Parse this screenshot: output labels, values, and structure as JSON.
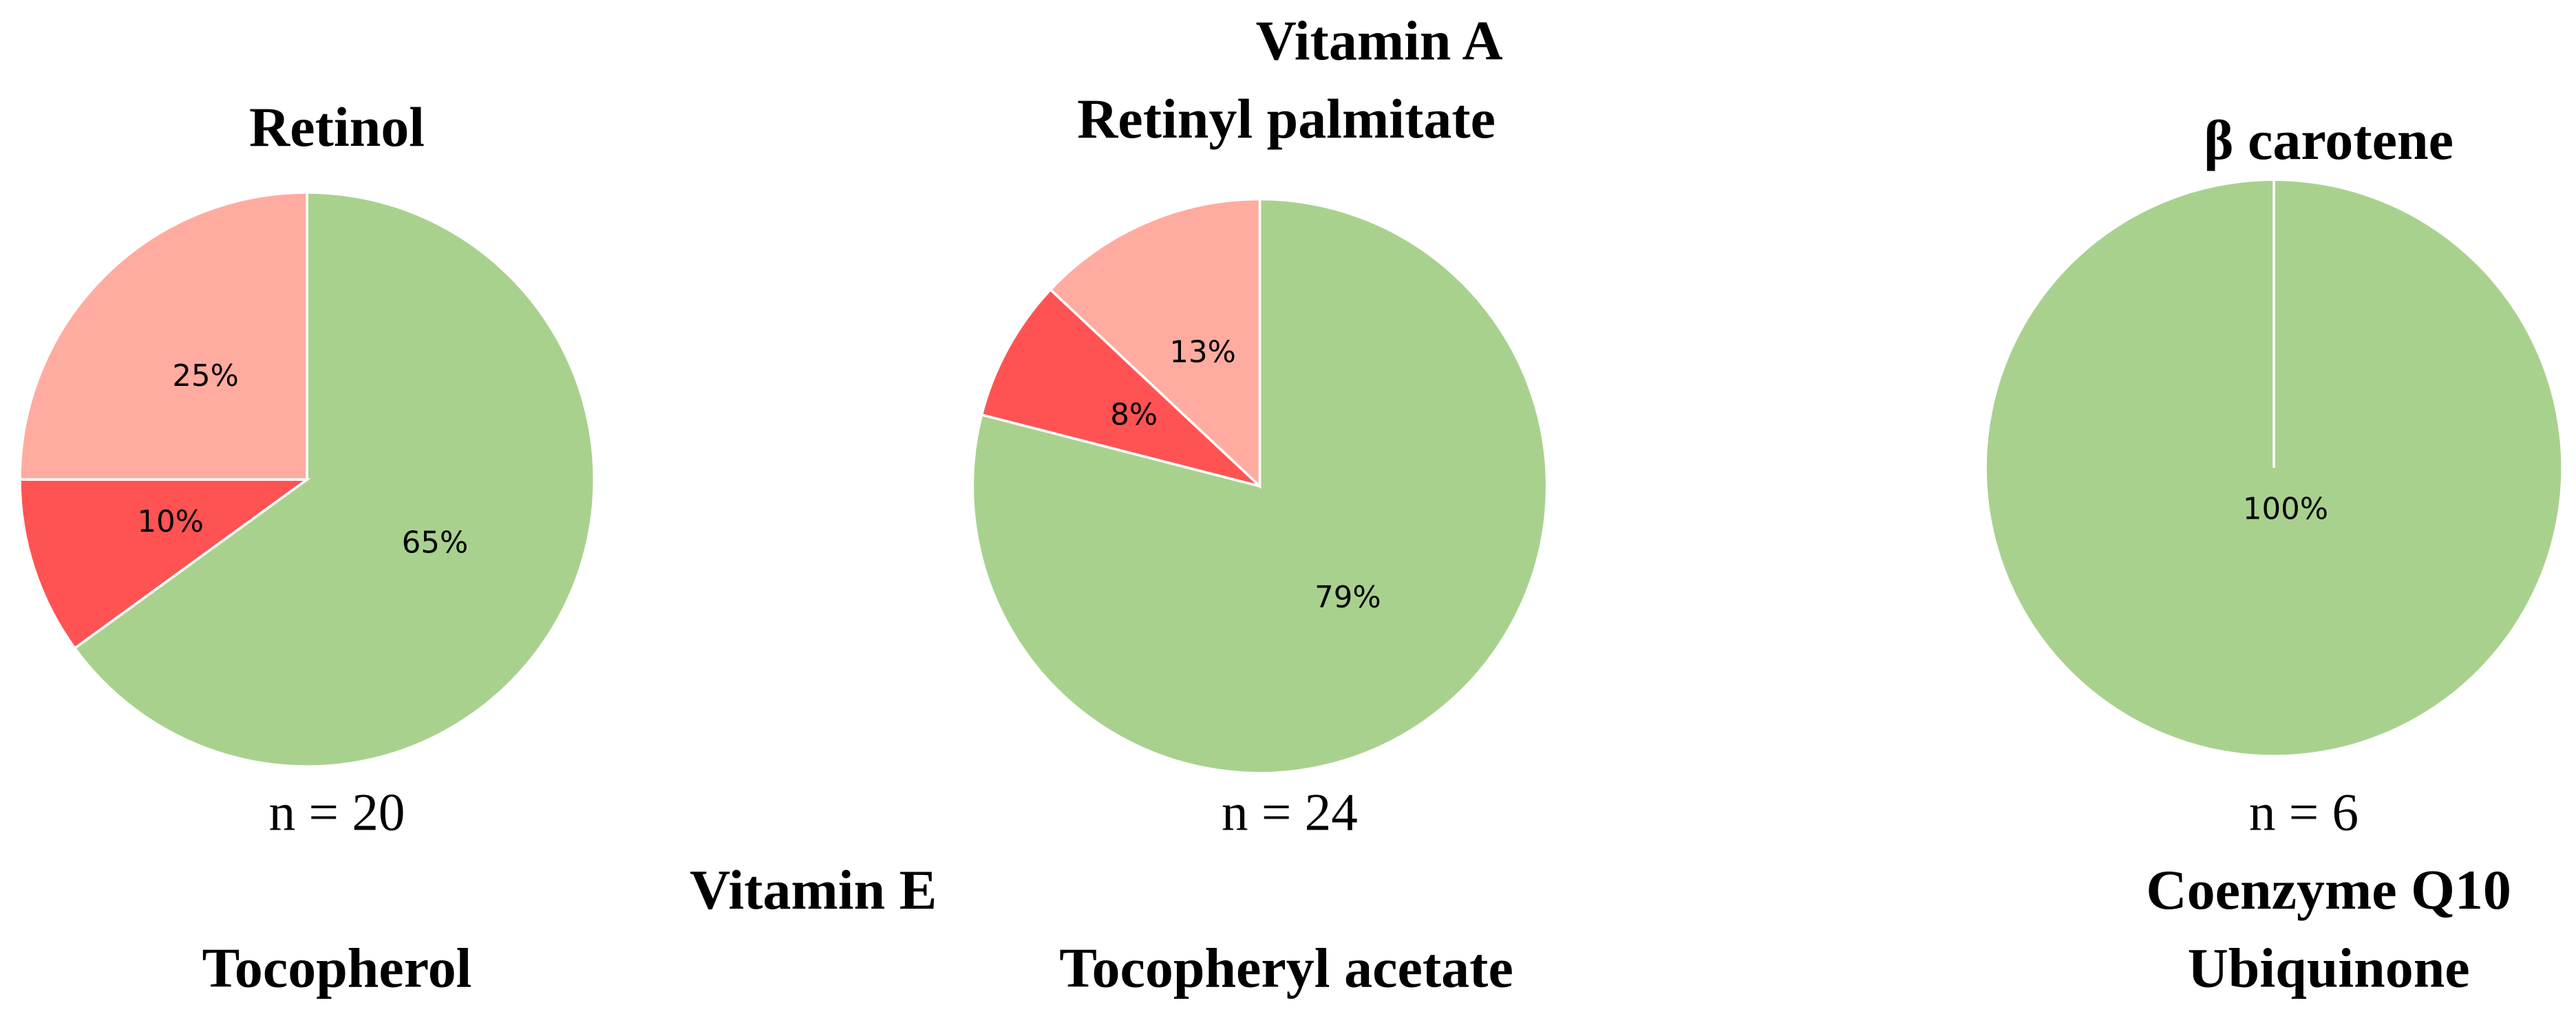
{
  "chart_data": [
    {
      "type": "pie",
      "title": "Retinol",
      "values": [
        65,
        10,
        25
      ],
      "value_labels": [
        "65%",
        "10%",
        "25%"
      ],
      "colors": [
        "#a9d18e",
        "#ff5353",
        "#ffaba0"
      ],
      "annotation": "n = 20"
    },
    {
      "type": "pie",
      "title": "Retinyl palmitate",
      "values": [
        79,
        8,
        13
      ],
      "value_labels": [
        "79%",
        "8%",
        "13%"
      ],
      "colors": [
        "#a9d18e",
        "#ff5353",
        "#ffaba0"
      ],
      "annotation": "n = 24"
    },
    {
      "type": "pie",
      "title": "β carotene",
      "values": [
        100
      ],
      "value_labels": [
        "100%"
      ],
      "colors": [
        "#a9d18e"
      ],
      "annotation": "n = 6"
    }
  ],
  "group_titles": [
    "Vitamin A",
    "Vitamin E",
    "Coenzyme Q10"
  ],
  "bottom_titles": [
    "Tocopherol",
    "Tocopheryl acetate",
    "Ubiquinone"
  ]
}
